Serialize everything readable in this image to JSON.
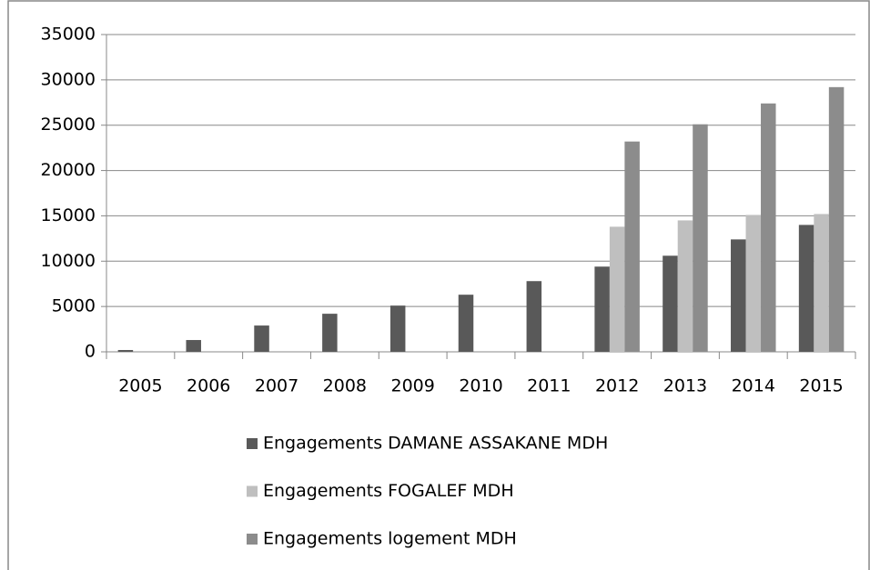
{
  "chart_data": {
    "type": "bar",
    "categories": [
      "2005",
      "2006",
      "2007",
      "2008",
      "2009",
      "2010",
      "2011",
      "2012",
      "2013",
      "2014",
      "2015"
    ],
    "series": [
      {
        "name": "Engagements DAMANE ASSAKANE MDH",
        "color": "#595959",
        "values": [
          200,
          1300,
          2900,
          4200,
          5100,
          6300,
          7800,
          9400,
          10600,
          12400,
          14000
        ]
      },
      {
        "name": "Engagements FOGALEF MDH",
        "color": "#bfbfbf",
        "values": [
          null,
          null,
          null,
          null,
          null,
          null,
          null,
          13800,
          14500,
          15100,
          15200
        ]
      },
      {
        "name": "Engagements logement MDH",
        "color": "#8c8c8c",
        "values": [
          null,
          null,
          null,
          null,
          null,
          null,
          null,
          23200,
          25100,
          27400,
          29200
        ]
      }
    ],
    "ylim": [
      0,
      35000
    ],
    "yticks": [
      0,
      5000,
      10000,
      15000,
      20000,
      25000,
      30000,
      35000
    ],
    "grid": true,
    "legend": "bottom"
  }
}
